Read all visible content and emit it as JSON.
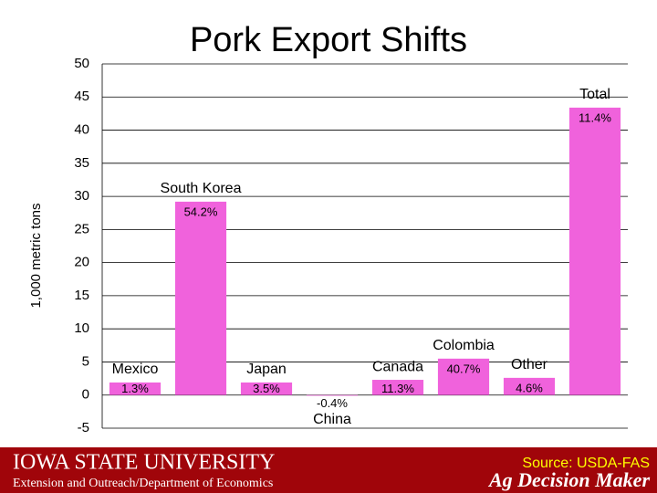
{
  "chart_data": {
    "type": "bar",
    "title": "Pork Export Shifts",
    "y_label": "1,000 metric tons",
    "categories": [
      "Mexico",
      "South Korea",
      "Japan",
      "China",
      "Canada",
      "Colombia",
      "Other",
      "Total"
    ],
    "values": [
      1.9,
      29.2,
      1.9,
      -0.1,
      2.3,
      5.5,
      2.6,
      43.4
    ],
    "change_labels": [
      "1.3%",
      "54.2%",
      "3.5%",
      "-0.4%",
      "11.3%",
      "40.7%",
      "4.6%",
      "11.4%"
    ],
    "color": "#f062dc",
    "ylim": [
      -5,
      50
    ],
    "yticks": [
      -5,
      0,
      5,
      10,
      15,
      20,
      25,
      30,
      35,
      40,
      45,
      50
    ],
    "grid": true
  },
  "footer": {
    "university": "Iowa State University",
    "department": "Extension and Outreach/Department of Economics",
    "source": "Source: USDA-FAS",
    "brand": "Ag Decision Maker"
  }
}
